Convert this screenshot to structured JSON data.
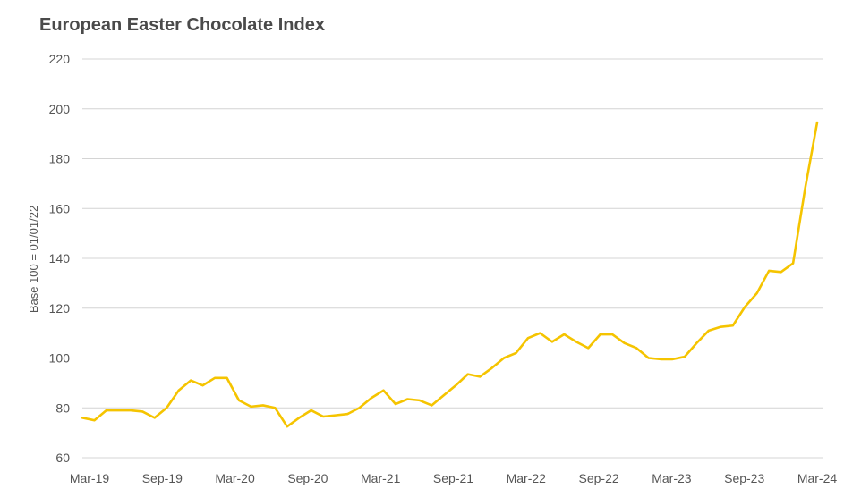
{
  "chart_data": {
    "type": "line",
    "title": "European Easter Chocolate Index",
    "xlabel": "",
    "ylabel": "Base 100 = 01/01/22",
    "ylim": [
      60,
      220
    ],
    "yticks": [
      60,
      80,
      100,
      120,
      140,
      160,
      180,
      200,
      220
    ],
    "xticks": [
      "Mar-19",
      "Sep-19",
      "Mar-20",
      "Sep-20",
      "Mar-21",
      "Sep-21",
      "Mar-22",
      "Sep-22",
      "Mar-23",
      "Sep-23",
      "Mar-24"
    ],
    "x_start": "Mar-19",
    "x_end": "Mar-24",
    "grid": true,
    "line_color": "#f5c400",
    "series": [
      {
        "values": [
          76,
          75,
          79,
          79,
          79,
          78.5,
          76,
          80,
          87,
          91,
          89,
          92,
          92,
          83,
          80.5,
          81,
          80,
          72.5,
          76,
          79,
          76.5,
          77,
          77.5,
          80,
          84,
          87,
          81.5,
          83.5,
          83,
          81,
          85,
          89,
          93.5,
          92.5,
          96,
          100,
          102,
          108,
          110,
          106.5,
          109.5,
          106.5,
          104,
          109.5,
          109.5,
          106,
          104,
          100,
          99.5,
          99.5,
          100.5,
          106,
          111,
          112.5,
          113,
          120.5,
          126,
          135,
          134.5,
          138,
          168,
          194.5
        ]
      }
    ]
  }
}
